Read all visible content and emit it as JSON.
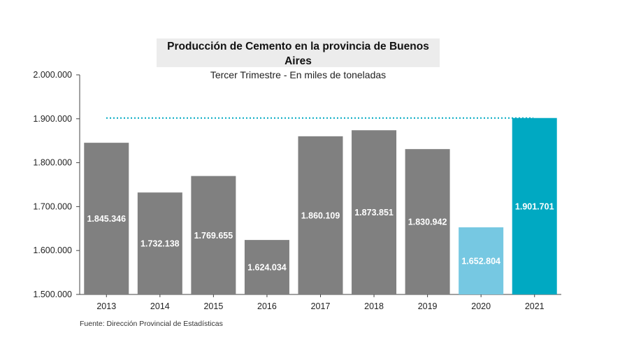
{
  "chart_data": {
    "type": "bar",
    "title": "Producción de Cemento en la provincia de Buenos Aires",
    "subtitle": "Tercer Trimestre - En miles de toneladas",
    "categories": [
      "2013",
      "2014",
      "2015",
      "2016",
      "2017",
      "2018",
      "2019",
      "2020",
      "2021"
    ],
    "values": [
      1845346,
      1732138,
      1769655,
      1624034,
      1860109,
      1873851,
      1830942,
      1652804,
      1901701
    ],
    "value_labels": [
      "1.845.346",
      "1.732.138",
      "1.769.655",
      "1.624.034",
      "1.860.109",
      "1.873.851",
      "1.830.942",
      "1.652.804",
      "1.901.701"
    ],
    "bar_colors": [
      "#808080",
      "#808080",
      "#808080",
      "#808080",
      "#808080",
      "#808080",
      "#808080",
      "#76c8e2",
      "#00a9c2"
    ],
    "ylim": [
      1500000,
      2000000
    ],
    "yticks": [
      1500000,
      1600000,
      1700000,
      1800000,
      1900000,
      2000000
    ],
    "ytick_labels": [
      "1.500.000",
      "1.600.000",
      "1.700.000",
      "1.800.000",
      "1.900.000",
      "2.000.000"
    ],
    "reference_line": {
      "value": 1901701,
      "color": "#00a9c2",
      "style": "dotted"
    },
    "grid": false,
    "legend": "none",
    "source": "Fuente: Dirección Provincial de Estadísticas"
  }
}
